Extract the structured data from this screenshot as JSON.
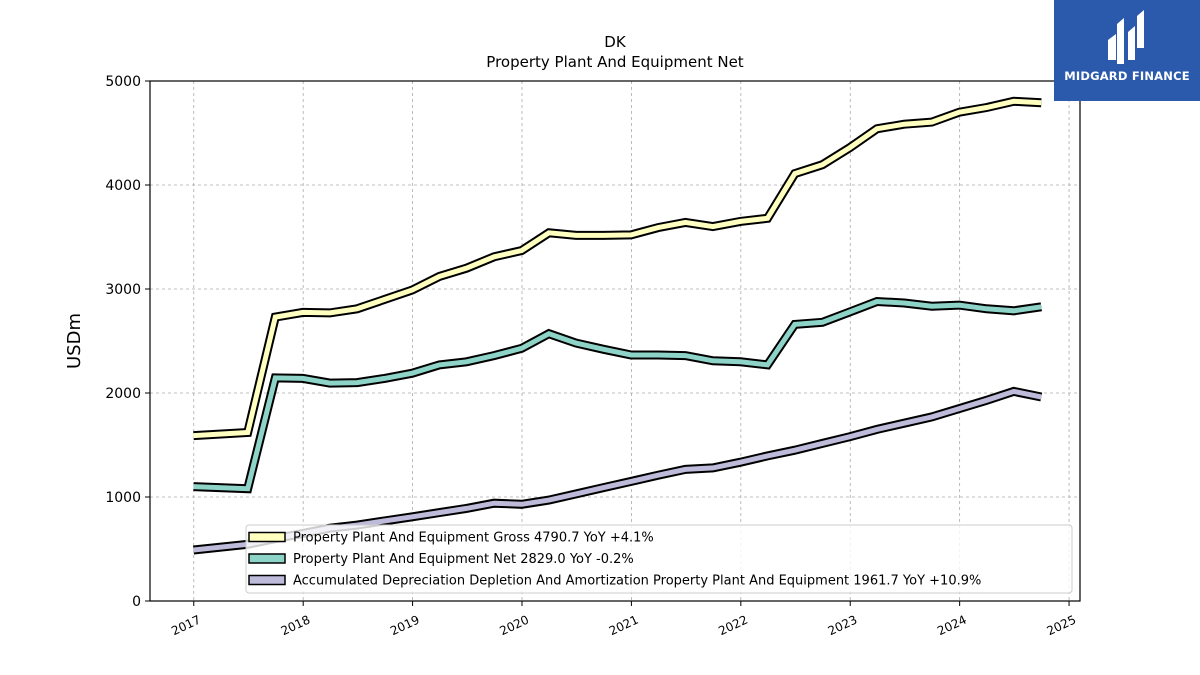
{
  "chart_data": {
    "type": "line",
    "title": "DK",
    "subtitle": "Property Plant And Equipment Net",
    "ylabel": "USDm",
    "xlabel": "",
    "ylim": [
      0,
      5000
    ],
    "xlim": [
      2016.6,
      2025.1
    ],
    "yticks": [
      0,
      1000,
      2000,
      3000,
      4000,
      5000
    ],
    "xticks": [
      "2017",
      "2018",
      "2019",
      "2020",
      "2021",
      "2022",
      "2023",
      "2024",
      "2025"
    ],
    "grid": true,
    "legend_position": "bottom-right",
    "series": [
      {
        "name": "Property Plant And Equipment Gross",
        "legend_label": "Property Plant And Equipment Gross  4790.7 YoY +4.1%",
        "color": "#ffffbf",
        "x": [
          "2016-12-31",
          "2017-06-30",
          "2017-09-30",
          "2017-12-31",
          "2018-03-31",
          "2018-06-30",
          "2018-09-30",
          "2018-12-31",
          "2019-03-31",
          "2019-06-30",
          "2019-09-30",
          "2019-12-31",
          "2020-03-31",
          "2020-06-30",
          "2020-09-30",
          "2020-12-31",
          "2021-03-31",
          "2021-06-30",
          "2021-09-30",
          "2021-12-31",
          "2022-03-31",
          "2022-06-30",
          "2022-09-30",
          "2022-12-31",
          "2023-03-31",
          "2023-06-30",
          "2023-09-30",
          "2023-12-31",
          "2024-03-31",
          "2024-06-30",
          "2024-09-30"
        ],
        "values": [
          1590,
          1620,
          2730,
          2775,
          2770,
          2810,
          2900,
          2990,
          3120,
          3200,
          3310,
          3370,
          3540,
          3515,
          3515,
          3520,
          3590,
          3640,
          3600,
          3650,
          3680,
          4110,
          4195,
          4360,
          4540,
          4585,
          4605,
          4700,
          4745,
          4805,
          4790
        ]
      },
      {
        "name": "Property Plant And Equipment Net",
        "legend_label": "Property Plant And Equipment Net  2829.0 YoY -0.2%",
        "color": "#8dd3c7",
        "x": [
          "2016-12-31",
          "2017-06-30",
          "2017-09-30",
          "2017-12-31",
          "2018-03-31",
          "2018-06-30",
          "2018-09-30",
          "2018-12-31",
          "2019-03-31",
          "2019-06-30",
          "2019-09-30",
          "2019-12-31",
          "2020-03-31",
          "2020-06-30",
          "2020-09-30",
          "2020-12-31",
          "2021-03-31",
          "2021-06-30",
          "2021-09-30",
          "2021-12-31",
          "2022-03-31",
          "2022-06-30",
          "2022-09-30",
          "2022-12-31",
          "2023-03-31",
          "2023-06-30",
          "2023-09-30",
          "2023-12-31",
          "2024-03-31",
          "2024-06-30",
          "2024-09-30"
        ],
        "values": [
          1100,
          1080,
          2145,
          2140,
          2095,
          2100,
          2140,
          2190,
          2270,
          2300,
          2360,
          2430,
          2570,
          2480,
          2420,
          2365,
          2365,
          2360,
          2310,
          2300,
          2270,
          2660,
          2680,
          2780,
          2880,
          2865,
          2835,
          2845,
          2810,
          2790,
          2829
        ]
      },
      {
        "name": "Accumulated Depreciation Depletion And Amortization Property Plant And Equipment",
        "legend_label": "Accumulated Depreciation Depletion And Amortization Property Plant And Equipment  1961.7 YoY +10.9%",
        "color": "#bebada",
        "x": [
          "2016-12-31",
          "2017-06-30",
          "2017-09-30",
          "2017-12-31",
          "2018-03-31",
          "2018-06-30",
          "2018-09-30",
          "2018-12-31",
          "2019-03-31",
          "2019-06-30",
          "2019-09-30",
          "2019-12-31",
          "2020-03-31",
          "2020-06-30",
          "2020-09-30",
          "2020-12-31",
          "2021-03-31",
          "2021-06-30",
          "2021-09-30",
          "2021-12-31",
          "2022-03-31",
          "2022-06-30",
          "2022-09-30",
          "2022-12-31",
          "2023-03-31",
          "2023-06-30",
          "2023-09-30",
          "2023-12-31",
          "2024-03-31",
          "2024-06-30",
          "2024-09-30"
        ],
        "values": [
          490,
          545,
          600,
          650,
          700,
          730,
          770,
          810,
          850,
          890,
          940,
          930,
          970,
          1030,
          1090,
          1150,
          1210,
          1265,
          1280,
          1335,
          1395,
          1450,
          1515,
          1580,
          1650,
          1710,
          1770,
          1850,
          1930,
          2015,
          1962
        ]
      }
    ]
  },
  "logo": {
    "text": "MIDGARD FINANCE",
    "color": "#2b5aad"
  }
}
